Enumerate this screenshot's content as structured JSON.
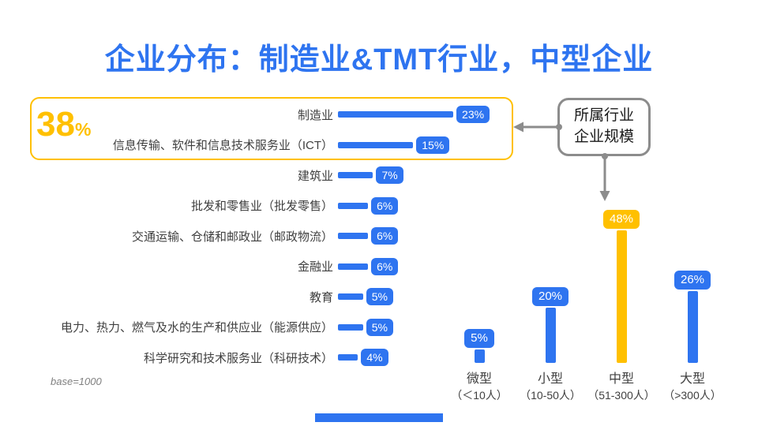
{
  "title": "企业分布：制造业&TMT行业，中型企业",
  "colors": {
    "blue": "#2E74F0",
    "gold": "#FFC000",
    "arrow_gray": "#8C8C8C"
  },
  "highlight": {
    "value": "38",
    "unit": "%"
  },
  "base_note": "base=1000",
  "chart_data": [
    {
      "type": "bar",
      "orientation": "horizontal",
      "title": "所属行业",
      "categories": [
        "制造业",
        "信息传输、软件和信息技术服务业（ICT）",
        "建筑业",
        "批发和零售业（批发零售）",
        "交通运输、仓储和邮政业（邮政物流）",
        "金融业",
        "教育",
        "电力、热力、燃气及水的生产和供应业（能源供应）",
        "科学研究和技术服务业（科研技术）"
      ],
      "values": [
        23,
        15,
        7,
        6,
        6,
        6,
        5,
        5,
        4
      ],
      "unit": "%",
      "base": 1000,
      "annotation": "前两类合计 38%"
    },
    {
      "type": "bar",
      "orientation": "vertical",
      "title": "企业规模",
      "categories": [
        "微型",
        "小型",
        "中型",
        "大型"
      ],
      "sub_labels": [
        "（＜10人）",
        "（10-50人）",
        "（51-300人）",
        "（>300人）"
      ],
      "values": [
        5,
        20,
        48,
        26
      ],
      "unit": "%",
      "highlight_index": 2
    }
  ]
}
